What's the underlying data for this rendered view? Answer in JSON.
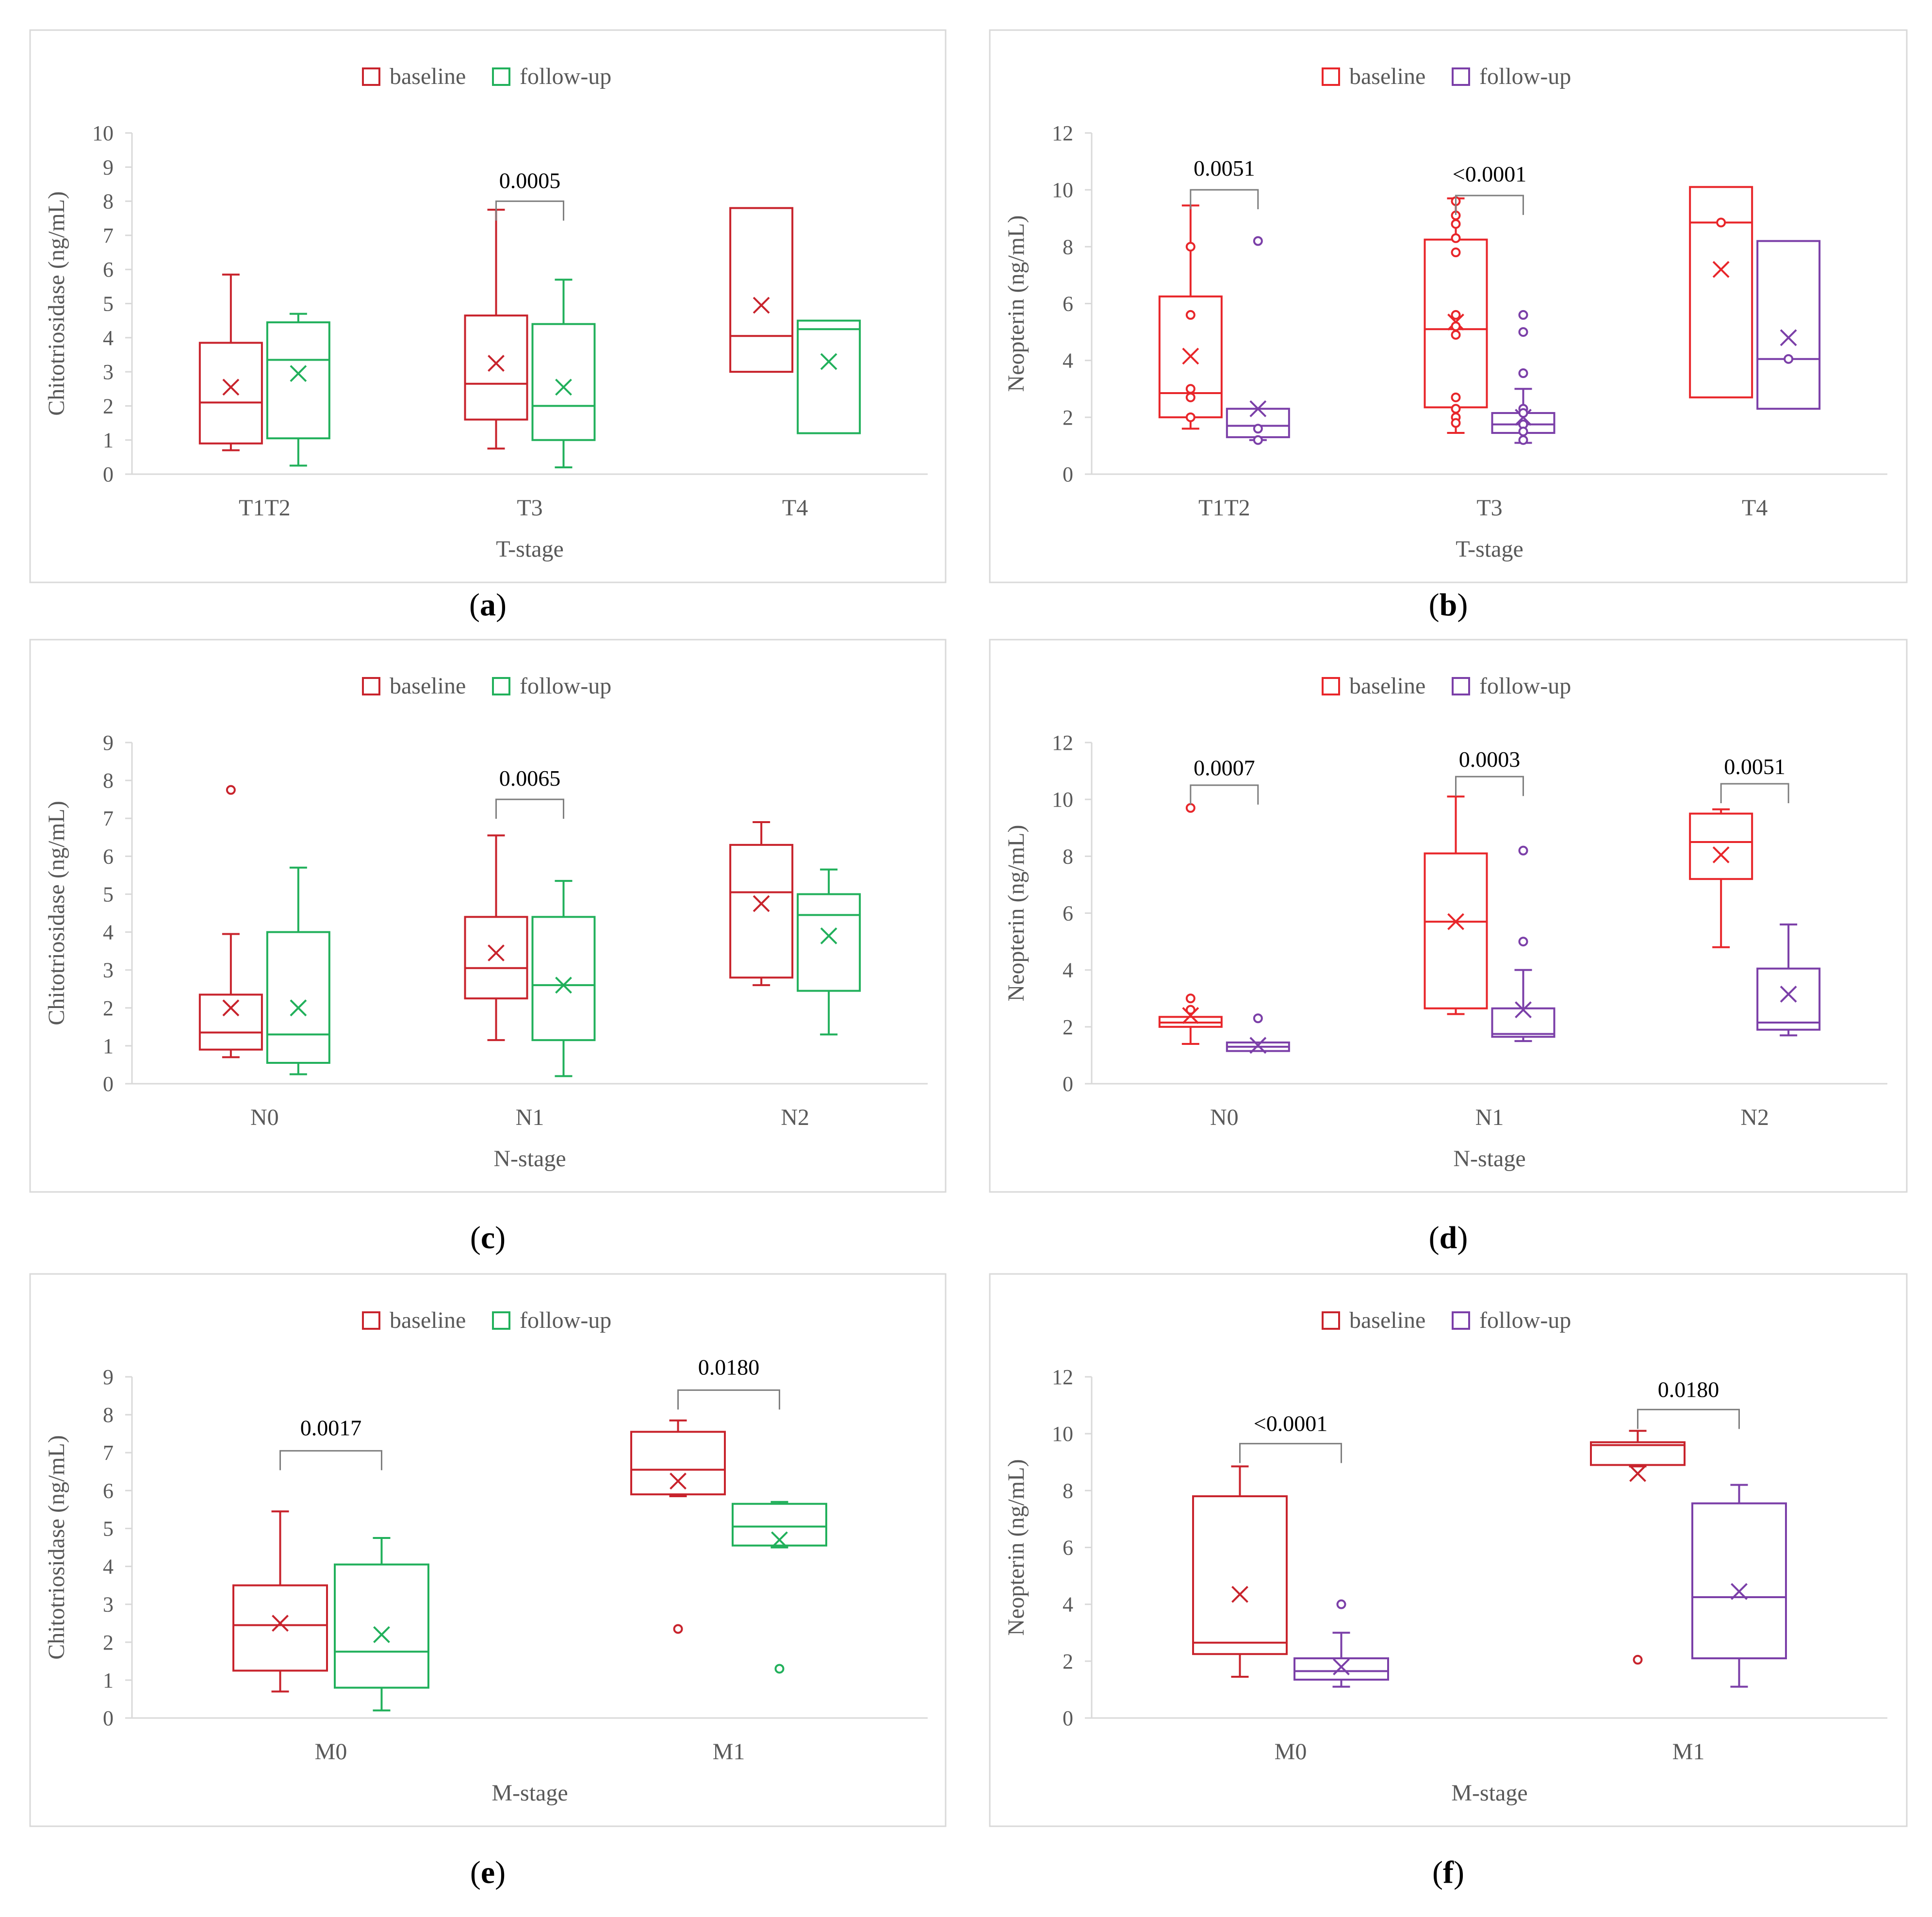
{
  "figure": {
    "legend": {
      "baseline": "baseline",
      "follow_up": "follow-up"
    },
    "colors": {
      "baseline": "#c8232c",
      "baseline_bright": "#e8262a",
      "follow_chit": "#21b05b",
      "follow_neop": "#7b3fa8",
      "axis": "#d9d9d9",
      "tick_text": "#595959",
      "bracket": "#7f7f7f",
      "frame": "#d9d9d9"
    }
  },
  "chart_data": [
    {
      "panel": "a",
      "caption": "a",
      "type": "box",
      "ylabel": "Chitotriosidase (ng/mL)",
      "xlabel": "T-stage",
      "ylim": [
        0,
        10
      ],
      "yticks": [
        0,
        1,
        2,
        3,
        4,
        5,
        6,
        7,
        8,
        9,
        10
      ],
      "categories": [
        "T1T2",
        "T3",
        "T4"
      ],
      "follow_color": "follow_chit",
      "baseline_color": "baseline",
      "series": [
        {
          "name": "baseline",
          "boxes": [
            {
              "min": 0.7,
              "q1": 0.9,
              "median": 2.1,
              "q3": 3.85,
              "max": 5.85,
              "mean": 2.55,
              "outliers": []
            },
            {
              "min": 0.75,
              "q1": 1.6,
              "median": 2.65,
              "q3": 4.65,
              "max": 7.75,
              "mean": 3.25,
              "outliers": []
            },
            {
              "min": 3.0,
              "q1": 3.0,
              "median": 4.05,
              "q3": 7.8,
              "max": 7.8,
              "mean": 4.95,
              "outliers": []
            }
          ]
        },
        {
          "name": "follow-up",
          "boxes": [
            {
              "min": 0.25,
              "q1": 1.05,
              "median": 3.35,
              "q3": 4.45,
              "max": 4.7,
              "mean": 2.95,
              "outliers": []
            },
            {
              "min": 0.2,
              "q1": 1.0,
              "median": 2.0,
              "q3": 4.4,
              "max": 5.7,
              "mean": 2.55,
              "outliers": []
            },
            {
              "min": 1.2,
              "q1": 1.2,
              "median": 4.25,
              "q3": 4.5,
              "max": 4.5,
              "mean": 3.3,
              "outliers": []
            }
          ]
        }
      ],
      "annotations": [
        {
          "category": 1,
          "text": "0.0005",
          "bracket_y": 8.0,
          "text_y": 8.6
        }
      ]
    },
    {
      "panel": "b",
      "caption": "b",
      "type": "box",
      "ylabel": "Neopterin (ng/mL)",
      "xlabel": "T-stage",
      "ylim": [
        0,
        12
      ],
      "yticks": [
        0,
        2,
        4,
        6,
        8,
        10,
        12
      ],
      "categories": [
        "T1T2",
        "T3",
        "T4"
      ],
      "follow_color": "follow_neop",
      "baseline_color": "baseline_bright",
      "series": [
        {
          "name": "baseline",
          "boxes": [
            {
              "min": 1.6,
              "q1": 2.0,
              "median": 2.85,
              "q3": 6.25,
              "max": 9.45,
              "mean": 4.15,
              "outliers": [
                8.0,
                5.6,
                3.0,
                2.7,
                2.0
              ]
            },
            {
              "min": 1.45,
              "q1": 2.35,
              "median": 5.1,
              "q3": 8.25,
              "max": 9.7,
              "mean": 5.35,
              "outliers": [
                9.6,
                9.1,
                8.8,
                8.3,
                7.8,
                5.6,
                5.2,
                4.9,
                2.7,
                2.3,
                2.0,
                1.8
              ]
            },
            {
              "min": 2.7,
              "q1": 2.7,
              "median": 8.85,
              "q3": 10.1,
              "max": 10.1,
              "mean": 7.2,
              "outliers": [
                8.85
              ]
            }
          ]
        },
        {
          "name": "follow-up",
          "boxes": [
            {
              "min": 1.2,
              "q1": 1.3,
              "median": 1.7,
              "q3": 2.3,
              "max": 2.3,
              "mean": 2.3,
              "outliers": [
                8.2,
                1.6,
                1.2
              ]
            },
            {
              "min": 1.1,
              "q1": 1.45,
              "median": 1.75,
              "q3": 2.15,
              "max": 3.0,
              "mean": 2.0,
              "outliers": [
                5.6,
                5.0,
                3.55,
                2.3,
                2.15,
                1.75,
                1.5,
                1.2
              ]
            },
            {
              "min": 2.3,
              "q1": 2.3,
              "median": 4.05,
              "q3": 8.2,
              "max": 8.2,
              "mean": 4.8,
              "outliers": [
                4.05
              ]
            }
          ]
        }
      ],
      "annotations": [
        {
          "category": 0,
          "text": "0.0051",
          "bracket_y": 10.0,
          "text_y": 10.75
        },
        {
          "category": 1,
          "text": "<0.0001",
          "bracket_y": 9.8,
          "text_y": 10.55
        }
      ]
    },
    {
      "panel": "c",
      "caption": "c",
      "type": "box",
      "ylabel": "Chitotriosidase (ng/mL)",
      "xlabel": "N-stage",
      "ylim": [
        0,
        9
      ],
      "yticks": [
        0,
        1,
        2,
        3,
        4,
        5,
        6,
        7,
        8,
        9
      ],
      "categories": [
        "N0",
        "N1",
        "N2"
      ],
      "follow_color": "follow_chit",
      "baseline_color": "baseline",
      "series": [
        {
          "name": "baseline",
          "boxes": [
            {
              "min": 0.7,
              "q1": 0.9,
              "median": 1.35,
              "q3": 2.35,
              "max": 3.95,
              "mean": 2.0,
              "outliers": [
                7.75
              ]
            },
            {
              "min": 1.15,
              "q1": 2.25,
              "median": 3.05,
              "q3": 4.4,
              "max": 6.55,
              "mean": 3.45,
              "outliers": []
            },
            {
              "min": 2.6,
              "q1": 2.8,
              "median": 5.05,
              "q3": 6.3,
              "max": 6.9,
              "mean": 4.75,
              "outliers": []
            }
          ]
        },
        {
          "name": "follow-up",
          "boxes": [
            {
              "min": 0.25,
              "q1": 0.55,
              "median": 1.3,
              "q3": 4.0,
              "max": 5.7,
              "mean": 2.0,
              "outliers": []
            },
            {
              "min": 0.2,
              "q1": 1.15,
              "median": 2.6,
              "q3": 4.4,
              "max": 5.35,
              "mean": 2.6,
              "outliers": []
            },
            {
              "min": 1.3,
              "q1": 2.45,
              "median": 4.45,
              "q3": 5.0,
              "max": 5.65,
              "mean": 3.9,
              "outliers": []
            }
          ]
        }
      ],
      "annotations": [
        {
          "category": 1,
          "text": "0.0065",
          "bracket_y": 7.5,
          "text_y": 8.05
        }
      ]
    },
    {
      "panel": "d",
      "caption": "d",
      "type": "box",
      "ylabel": "Neopterin (ng/mL)",
      "xlabel": "N-stage",
      "ylim": [
        0,
        12
      ],
      "yticks": [
        0,
        2,
        4,
        6,
        8,
        10,
        12
      ],
      "categories": [
        "N0",
        "N1",
        "N2"
      ],
      "follow_color": "follow_neop",
      "baseline_color": "baseline_bright",
      "series": [
        {
          "name": "baseline",
          "boxes": [
            {
              "min": 1.4,
              "q1": 2.0,
              "median": 2.15,
              "q3": 2.35,
              "max": 2.35,
              "mean": 2.4,
              "outliers": [
                9.7,
                3.0,
                2.6
              ]
            },
            {
              "min": 2.45,
              "q1": 2.65,
              "median": 5.7,
              "q3": 8.1,
              "max": 10.1,
              "mean": 5.7,
              "outliers": []
            },
            {
              "min": 4.8,
              "q1": 7.2,
              "median": 8.5,
              "q3": 9.5,
              "max": 9.65,
              "mean": 8.05,
              "outliers": []
            }
          ]
        },
        {
          "name": "follow-up",
          "boxes": [
            {
              "min": 1.15,
              "q1": 1.15,
              "median": 1.3,
              "q3": 1.45,
              "max": 1.45,
              "mean": 1.35,
              "outliers": [
                2.3
              ]
            },
            {
              "min": 1.5,
              "q1": 1.65,
              "median": 1.75,
              "q3": 2.65,
              "max": 4.0,
              "mean": 2.6,
              "outliers": [
                8.2,
                5.0
              ]
            },
            {
              "min": 1.7,
              "q1": 1.9,
              "median": 2.15,
              "q3": 4.05,
              "max": 5.6,
              "mean": 3.15,
              "outliers": []
            }
          ]
        }
      ],
      "annotations": [
        {
          "category": 0,
          "text": "0.0007",
          "bracket_y": 10.5,
          "text_y": 11.1
        },
        {
          "category": 1,
          "text": "0.0003",
          "bracket_y": 10.8,
          "text_y": 11.4
        },
        {
          "category": 2,
          "text": "0.0051",
          "bracket_y": 10.55,
          "text_y": 11.15
        }
      ]
    },
    {
      "panel": "e",
      "caption": "e",
      "type": "box",
      "ylabel": "Chitotriosidase (ng/mL)",
      "xlabel": "M-stage",
      "ylim": [
        0,
        9
      ],
      "yticks": [
        0,
        1,
        2,
        3,
        4,
        5,
        6,
        7,
        8,
        9
      ],
      "categories": [
        "M0",
        "M1"
      ],
      "follow_color": "follow_chit",
      "baseline_color": "baseline",
      "series": [
        {
          "name": "baseline",
          "boxes": [
            {
              "min": 0.7,
              "q1": 1.25,
              "median": 2.45,
              "q3": 3.5,
              "max": 5.45,
              "mean": 2.5,
              "outliers": []
            },
            {
              "min": 5.85,
              "q1": 5.9,
              "median": 6.55,
              "q3": 7.55,
              "max": 7.85,
              "mean": 6.25,
              "outliers": [
                2.35
              ]
            }
          ]
        },
        {
          "name": "follow-up",
          "boxes": [
            {
              "min": 0.2,
              "q1": 0.8,
              "median": 1.75,
              "q3": 4.05,
              "max": 4.75,
              "mean": 2.2,
              "outliers": []
            },
            {
              "min": 4.5,
              "q1": 4.55,
              "median": 5.05,
              "q3": 5.65,
              "max": 5.7,
              "mean": 4.7,
              "outliers": [
                1.3
              ]
            }
          ]
        }
      ],
      "annotations": [
        {
          "category": 0,
          "text": "0.0017",
          "bracket_y": 7.05,
          "text_y": 7.65
        },
        {
          "category": 1,
          "text": "0.0180",
          "bracket_y": 8.65,
          "text_y": 9.25
        }
      ]
    },
    {
      "panel": "f",
      "caption": "f",
      "type": "box",
      "ylabel": "Neopterin (ng/mL)",
      "xlabel": "M-stage",
      "ylim": [
        0,
        12
      ],
      "yticks": [
        0,
        2,
        4,
        6,
        8,
        10,
        12
      ],
      "categories": [
        "M0",
        "M1"
      ],
      "follow_color": "follow_neop",
      "baseline_color": "baseline",
      "series": [
        {
          "name": "baseline",
          "boxes": [
            {
              "min": 1.45,
              "q1": 2.25,
              "median": 2.65,
              "q3": 7.8,
              "max": 8.85,
              "mean": 4.35,
              "outliers": []
            },
            {
              "min": 8.85,
              "q1": 8.9,
              "median": 9.6,
              "q3": 9.7,
              "max": 10.1,
              "mean": 8.6,
              "outliers": [
                2.05
              ]
            }
          ]
        },
        {
          "name": "follow-up",
          "boxes": [
            {
              "min": 1.1,
              "q1": 1.35,
              "median": 1.65,
              "q3": 2.1,
              "max": 3.0,
              "mean": 1.8,
              "outliers": [
                4.0
              ]
            },
            {
              "min": 1.1,
              "q1": 2.1,
              "median": 4.25,
              "q3": 7.55,
              "max": 8.2,
              "mean": 4.45,
              "outliers": []
            }
          ]
        }
      ],
      "annotations": [
        {
          "category": 0,
          "text": "<0.0001",
          "bracket_y": 9.65,
          "text_y": 10.35
        },
        {
          "category": 1,
          "text": "0.0180",
          "bracket_y": 10.85,
          "text_y": 11.55
        }
      ]
    }
  ]
}
